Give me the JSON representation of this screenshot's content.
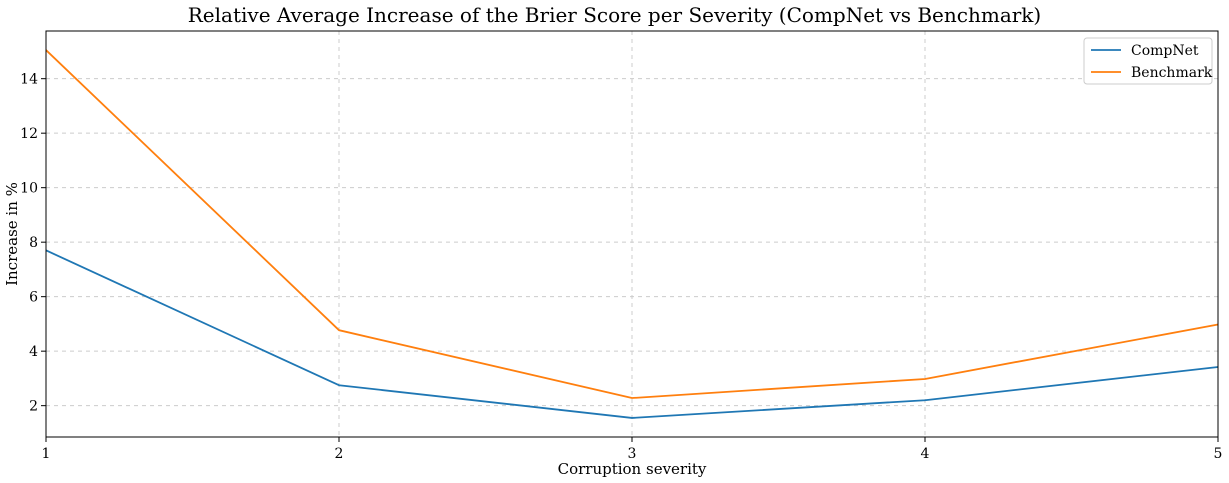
{
  "chart_data": {
    "type": "line",
    "title": "Relative Average Increase of the Brier Score per Severity (CompNet vs Benchmark)",
    "xlabel": "Corruption severity",
    "ylabel": "Increase in %",
    "x": [
      1,
      2,
      3,
      4,
      5
    ],
    "xticks": [
      "1",
      "2",
      "3",
      "4",
      "5"
    ],
    "yticks": [
      "2",
      "4",
      "6",
      "8",
      "10",
      "12",
      "14"
    ],
    "ylim": [
      0.85,
      15.75
    ],
    "xlim": [
      1,
      5
    ],
    "grid": true,
    "legend_position": "top-right",
    "series": [
      {
        "name": "CompNet",
        "values": [
          7.7,
          2.75,
          1.55,
          2.2,
          3.42
        ],
        "color": "#1f77b4"
      },
      {
        "name": "Benchmark",
        "values": [
          15.05,
          4.77,
          2.28,
          2.98,
          4.98
        ],
        "color": "#ff7f0e"
      }
    ]
  }
}
